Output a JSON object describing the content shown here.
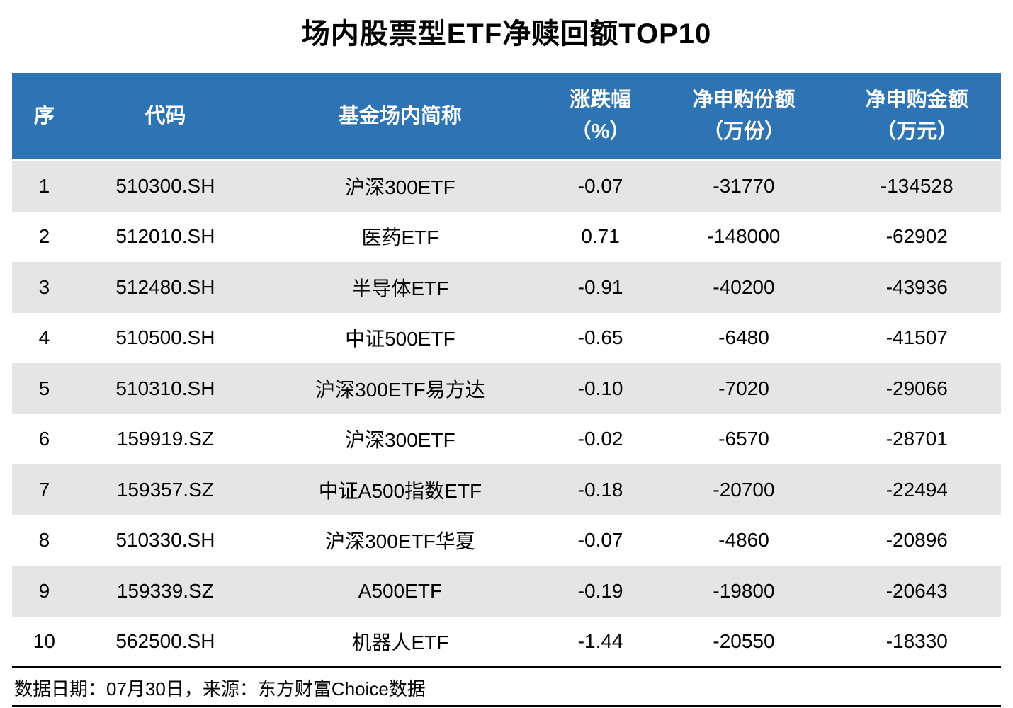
{
  "title": "场内股票型ETF净赎回额TOP10",
  "footer": {
    "source_note": "数据日期：07月30日，来源：东方财富Choice数据"
  },
  "colors": {
    "header_bg": "#2E74B5",
    "header_text": "#FFFFFF",
    "stripe_bg": "#E5E5E5",
    "body_text": "#000000",
    "divider": "#000000"
  },
  "table": {
    "column_keys": [
      "seq",
      "code",
      "name",
      "change",
      "shares",
      "amount"
    ],
    "columns": [
      {
        "label": "序",
        "unit": ""
      },
      {
        "label": "代码",
        "unit": ""
      },
      {
        "label": "基金场内简称",
        "unit": ""
      },
      {
        "label": "涨跌幅",
        "unit": "（%）"
      },
      {
        "label": "净申购份额",
        "unit": "（万份）"
      },
      {
        "label": "净申购金额",
        "unit": "（万元）"
      }
    ],
    "rows": [
      [
        "1",
        "510300.SH",
        "沪深300ETF",
        "-0.07",
        "-31770",
        "-134528"
      ],
      [
        "2",
        "512010.SH",
        "医药ETF",
        "0.71",
        "-148000",
        "-62902"
      ],
      [
        "3",
        "512480.SH",
        "半导体ETF",
        "-0.91",
        "-40200",
        "-43936"
      ],
      [
        "4",
        "510500.SH",
        "中证500ETF",
        "-0.65",
        "-6480",
        "-41507"
      ],
      [
        "5",
        "510310.SH",
        "沪深300ETF易方达",
        "-0.10",
        "-7020",
        "-29066"
      ],
      [
        "6",
        "159919.SZ",
        "沪深300ETF",
        "-0.02",
        "-6570",
        "-28701"
      ],
      [
        "7",
        "159357.SZ",
        "中证A500指数ETF",
        "-0.18",
        "-20700",
        "-22494"
      ],
      [
        "8",
        "510330.SH",
        "沪深300ETF华夏",
        "-0.07",
        "-4860",
        "-20896"
      ],
      [
        "9",
        "159339.SZ",
        "A500ETF",
        "-0.19",
        "-19800",
        "-20643"
      ],
      [
        "10",
        "562500.SH",
        "机器人ETF",
        "-1.44",
        "-20550",
        "-18330"
      ]
    ]
  },
  "chart_data": {
    "type": "table",
    "title": "场内股票型ETF净赎回额TOP10",
    "columns": [
      "序",
      "代码",
      "基金场内简称",
      "涨跌幅（%）",
      "净申购份额（万份）",
      "净申购金额（万元）"
    ],
    "rows": [
      [
        1,
        "510300.SH",
        "沪深300ETF",
        -0.07,
        -31770,
        -134528
      ],
      [
        2,
        "512010.SH",
        "医药ETF",
        0.71,
        -148000,
        -62902
      ],
      [
        3,
        "512480.SH",
        "半导体ETF",
        -0.91,
        -40200,
        -43936
      ],
      [
        4,
        "510500.SH",
        "中证500ETF",
        -0.65,
        -6480,
        -41507
      ],
      [
        5,
        "510310.SH",
        "沪深300ETF易方达",
        -0.1,
        -7020,
        -29066
      ],
      [
        6,
        "159919.SZ",
        "沪深300ETF",
        -0.02,
        -6570,
        -28701
      ],
      [
        7,
        "159357.SZ",
        "中证A500指数ETF",
        -0.18,
        -20700,
        -22494
      ],
      [
        8,
        "510330.SH",
        "沪深300ETF华夏",
        -0.07,
        -4860,
        -20896
      ],
      [
        9,
        "159339.SZ",
        "A500ETF",
        -0.19,
        -19800,
        -20643
      ],
      [
        10,
        "562500.SH",
        "机器人ETF",
        -1.44,
        -20550,
        -18330
      ]
    ],
    "source_note": "数据日期：07月30日，来源：东方财富Choice数据"
  }
}
